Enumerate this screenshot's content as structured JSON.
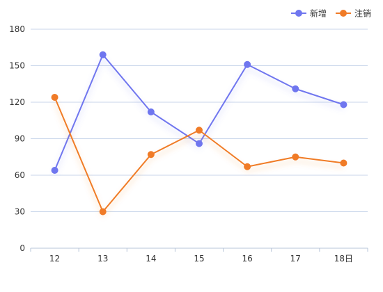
{
  "chart_data": {
    "type": "line",
    "categories": [
      "12",
      "13",
      "14",
      "15",
      "16",
      "17",
      "18日"
    ],
    "series": [
      {
        "name": "新增",
        "color": "#6f76ef",
        "values": [
          64,
          159,
          112,
          86,
          151,
          131,
          118
        ]
      },
      {
        "name": "注销",
        "color": "#f07b27",
        "values": [
          124,
          30,
          77,
          97,
          67,
          75,
          70
        ]
      }
    ],
    "yticks": [
      0,
      30,
      60,
      90,
      120,
      150,
      180
    ],
    "ylim": [
      0,
      180
    ],
    "grid": true,
    "legend": "top-right"
  }
}
